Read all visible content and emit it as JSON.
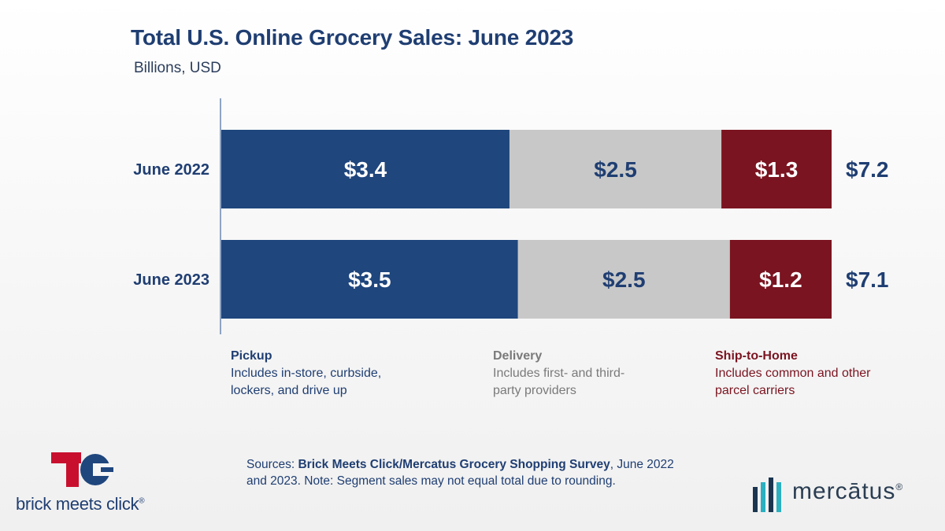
{
  "chart_data": {
    "type": "bar",
    "orientation": "horizontal",
    "stacked": true,
    "title": "Total U.S. Online Grocery Sales: June 2023",
    "subtitle": "Billions, USD",
    "categories": [
      "June 2022",
      "June 2023"
    ],
    "series": [
      {
        "name": "Pickup",
        "values": [
          3.4,
          3.5
        ],
        "labels": [
          "$3.4",
          "$3.5"
        ],
        "color": "#1f467d",
        "label_color": "#ffffff"
      },
      {
        "name": "Delivery",
        "values": [
          2.5,
          2.5
        ],
        "labels": [
          "$2.5",
          "$2.5"
        ],
        "color": "#c8c8c8",
        "label_color": "#1f3e72"
      },
      {
        "name": "Ship-to-Home",
        "values": [
          1.3,
          1.2
        ],
        "labels": [
          "$1.3",
          "$1.2"
        ],
        "color": "#7a1420",
        "label_color": "#ffffff"
      }
    ],
    "totals": [
      7.2,
      7.1
    ],
    "total_labels": [
      "$7.2",
      "$7.1"
    ],
    "xlim": [
      0,
      7.2
    ],
    "grid": false
  },
  "legend": {
    "pickup": {
      "name": "Pickup",
      "desc": "Includes in-store, curbside, lockers, and drive up"
    },
    "delivery": {
      "name": "Delivery",
      "desc": "Includes first- and third-party providers"
    },
    "ship": {
      "name": "Ship-to-Home",
      "desc": "Includes common and other parcel carriers"
    }
  },
  "sources": {
    "prefix": "Sources: ",
    "bold": "Brick Meets Click/Mercatus Grocery Shopping Survey",
    "rest": ", June 2022 and 2023. Note: Segment sales may not equal total due to rounding."
  },
  "logos": {
    "bmc_text": "brick meets click",
    "bmc_mark": "®",
    "mercatus_text": "mercātus",
    "mercatus_mark": "®"
  },
  "colors": {
    "navy": "#1f467d",
    "gray": "#c8c8c8",
    "maroon": "#7a1420"
  }
}
